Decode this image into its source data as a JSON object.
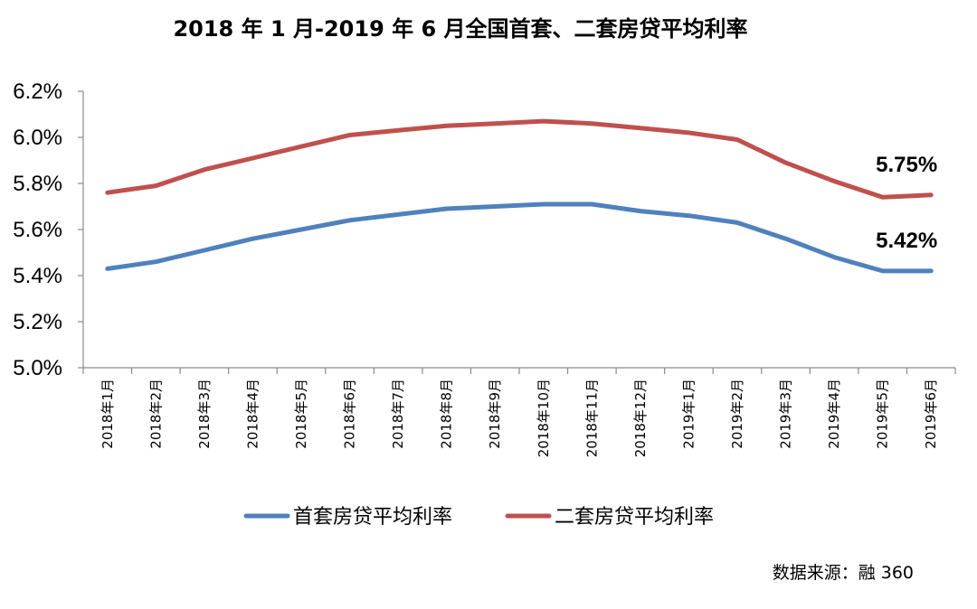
{
  "chart_data": {
    "type": "line",
    "title": "2018 年 1 月-2019 年 6 月全国首套、二套房贷平均利率",
    "categories": [
      "2018年1月",
      "2018年2月",
      "2018年3月",
      "2018年4月",
      "2018年5月",
      "2018年6月",
      "2018年7月",
      "2018年8月",
      "2018年9月",
      "2018年10月",
      "2018年11月",
      "2018年12月",
      "2019年1月",
      "2019年2月",
      "2019年3月",
      "2019年4月",
      "2019年5月",
      "2019年6月"
    ],
    "series": [
      {
        "name": "首套房贷平均利率",
        "color": "#4f81bd",
        "values": [
          5.43,
          5.46,
          5.51,
          5.56,
          5.6,
          5.64,
          5.665,
          5.69,
          5.7,
          5.71,
          5.71,
          5.68,
          5.66,
          5.63,
          5.56,
          5.48,
          5.42,
          5.42
        ],
        "end_label": "5.42%"
      },
      {
        "name": "二套房贷平均利率",
        "color": "#c0504d",
        "values": [
          5.76,
          5.79,
          5.86,
          5.91,
          5.96,
          6.01,
          6.03,
          6.05,
          6.06,
          6.07,
          6.06,
          6.04,
          6.02,
          5.99,
          5.89,
          5.81,
          5.74,
          5.75
        ],
        "end_label": "5.75%"
      }
    ],
    "ylim": [
      5.0,
      6.2
    ],
    "yticks": [
      "5.0%",
      "5.2%",
      "5.4%",
      "5.6%",
      "5.8%",
      "6.0%",
      "6.2%"
    ],
    "ytick_values": [
      5.0,
      5.2,
      5.4,
      5.6,
      5.8,
      6.0,
      6.2
    ],
    "grid": false,
    "legend_position": "bottom",
    "xlabel": "",
    "ylabel": ""
  },
  "source_note": "数据来源：融 360",
  "colors": {
    "axis": "#8c8c8c",
    "text": "#000000",
    "background": "#ffffff"
  }
}
